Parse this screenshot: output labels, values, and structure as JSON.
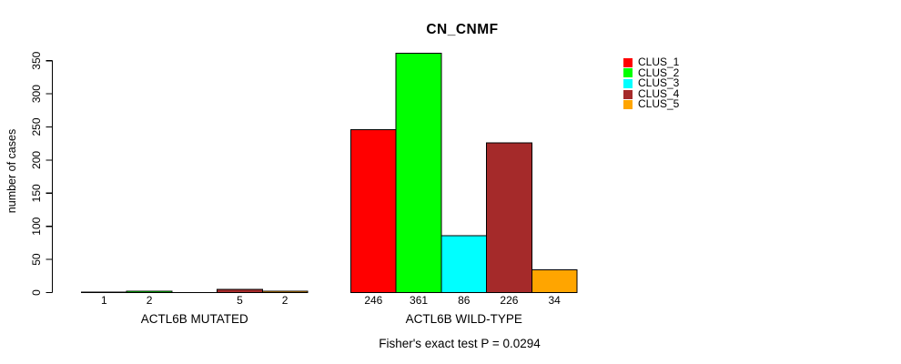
{
  "header": {
    "title": "CN_CNMF"
  },
  "y_axis": {
    "label": "number of cases"
  },
  "legend": {
    "items": [
      {
        "label": "CLUS_1",
        "color": "#ff0000"
      },
      {
        "label": "CLUS_2",
        "color": "#00ff00"
      },
      {
        "label": "CLUS_3",
        "color": "#00ffff"
      },
      {
        "label": "CLUS_4",
        "color": "#a52a2a"
      },
      {
        "label": "CLUS_5",
        "color": "#ffa500"
      }
    ]
  },
  "footer": {
    "text": "Fisher's exact test P = 0.0294"
  },
  "chart_data": {
    "type": "bar",
    "title": "CN_CNMF",
    "ylabel": "number of cases",
    "ylim": [
      0,
      350
    ],
    "yticks": [
      0,
      50,
      100,
      150,
      200,
      250,
      300,
      350
    ],
    "grid": false,
    "legend_position": "top-right",
    "series_names": [
      "CLUS_1",
      "CLUS_2",
      "CLUS_3",
      "CLUS_4",
      "CLUS_5"
    ],
    "series_colors": [
      "#ff0000",
      "#00ff00",
      "#00ffff",
      "#a52a2a",
      "#ffa500"
    ],
    "groups": [
      {
        "label": "ACTL6B MUTATED",
        "values": [
          1,
          2,
          0,
          5,
          2
        ],
        "bar_labels": [
          "1",
          "2",
          "",
          "5",
          "2"
        ]
      },
      {
        "label": "ACTL6B WILD-TYPE",
        "values": [
          246,
          361,
          86,
          226,
          34
        ],
        "bar_labels": [
          "246",
          "361",
          "86",
          "226",
          "34"
        ]
      }
    ],
    "annotation": "Fisher's exact test P = 0.0294"
  }
}
